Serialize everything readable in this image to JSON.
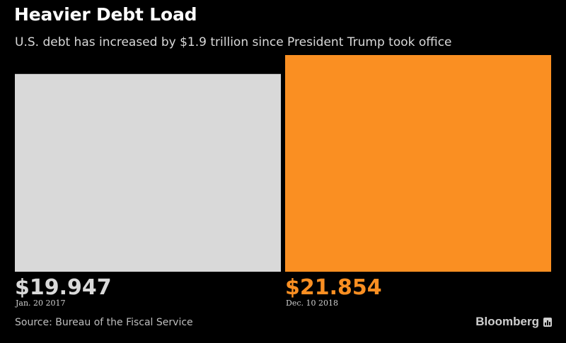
{
  "title": "Heavier Debt Load",
  "subtitle": "U.S. debt has increased by $1.9 trillion since President Trump took office",
  "source": "Source: Bureau of the Fiscal Service",
  "brand": "Bloomberg",
  "colors": {
    "background": "#000000",
    "bar_jan": "#d9d9d9",
    "bar_dec": "#fa8f22",
    "value_jan": "#d9d9d9",
    "value_dec": "#fa8f22"
  },
  "chart_data": {
    "type": "bar",
    "title": "Heavier Debt Load",
    "subtitle": "U.S. debt has increased by $1.9 trillion since President Trump took office",
    "unit": "trillion USD",
    "categories": [
      "Jan. 20 2017",
      "Dec. 10 2018"
    ],
    "values": [
      19.947,
      21.854
    ],
    "value_labels": [
      "$19.947",
      "$21.854"
    ],
    "bar_colors": [
      "#d9d9d9",
      "#fa8f22"
    ],
    "label_colors": [
      "#d9d9d9",
      "#fa8f22"
    ],
    "grid": false,
    "legend": "none"
  }
}
